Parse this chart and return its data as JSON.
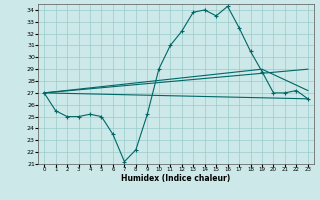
{
  "xlabel": "Humidex (Indice chaleur)",
  "ylabel": "",
  "bg_color": "#cce8e8",
  "grid_color": "#99cccc",
  "line_color": "#006666",
  "xlim": [
    -0.5,
    23.5
  ],
  "ylim": [
    21,
    34.5
  ],
  "yticks": [
    21,
    22,
    23,
    24,
    25,
    26,
    27,
    28,
    29,
    30,
    31,
    32,
    33,
    34
  ],
  "xticks": [
    0,
    1,
    2,
    3,
    4,
    5,
    6,
    7,
    8,
    9,
    10,
    11,
    12,
    13,
    14,
    15,
    16,
    17,
    18,
    19,
    20,
    21,
    22,
    23
  ],
  "series1_x": [
    0,
    1,
    2,
    3,
    4,
    5,
    6,
    7,
    8,
    9,
    10,
    11,
    12,
    13,
    14,
    15,
    16,
    17,
    18,
    19,
    20,
    21,
    22,
    23
  ],
  "series1_y": [
    27.0,
    25.5,
    25.0,
    25.0,
    25.2,
    25.0,
    23.5,
    21.2,
    22.2,
    25.2,
    29.0,
    31.0,
    32.2,
    33.8,
    34.0,
    33.5,
    34.3,
    32.5,
    30.5,
    28.8,
    27.0,
    27.0,
    27.2,
    26.5
  ],
  "series2_x": [
    0,
    23
  ],
  "series2_y": [
    27.0,
    29.0
  ],
  "series3_x": [
    0,
    19,
    23
  ],
  "series3_y": [
    27.0,
    29.0,
    27.2
  ],
  "series4_x": [
    0,
    23
  ],
  "series4_y": [
    27.0,
    26.5
  ],
  "marker": "+"
}
